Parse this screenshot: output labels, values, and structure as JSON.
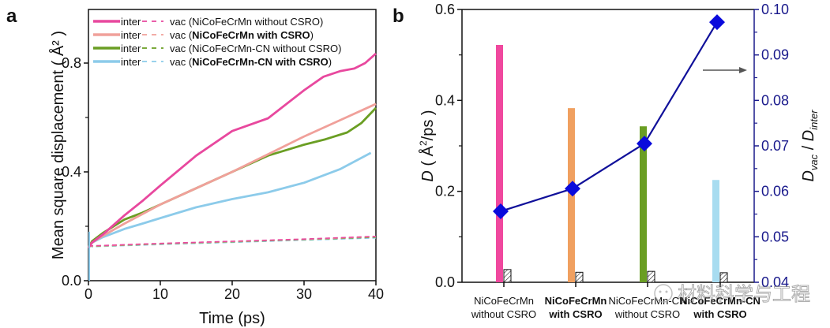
{
  "chart_data": [
    {
      "panel": "a",
      "type": "line",
      "title": "",
      "xlabel": "Time (ps)",
      "ylabel": "Mean square displacement ( Å² )",
      "xlim": [
        0,
        40
      ],
      "ylim": [
        0,
        0.9
      ],
      "xticks": [
        "0",
        "10",
        "20",
        "30",
        "40"
      ],
      "xtick_values": [
        0,
        10,
        20,
        30,
        40
      ],
      "yticks": [
        "0.0",
        "0.4",
        "0.8"
      ],
      "ytick_values": [
        0,
        0.4,
        0.8
      ],
      "yminor_values": [
        0.2,
        0.6
      ],
      "grid": false,
      "legend_position": "top-left",
      "legend": [
        {
          "solid": "inter",
          "dashed": "vac",
          "label_prefix": "(",
          "label_main": "NiCoFeCrMn without CSRO",
          "label_suffix": ")",
          "bold": false,
          "color": "#e8489e"
        },
        {
          "solid": "inter",
          "dashed": "vac",
          "label_prefix": "(",
          "label_main": "NiCoFeCrMn with CSRO",
          "label_suffix": ")",
          "bold": true,
          "color": "#f0a09a"
        },
        {
          "solid": "inter",
          "dashed": "vac",
          "label_prefix": "(",
          "label_main": "NiCoFeCrMn-CN without CSRO",
          "label_suffix": ")",
          "bold": false,
          "color": "#6a9e23"
        },
        {
          "solid": "inter",
          "dashed": "vac",
          "label_prefix": "(",
          "label_main": "NiCoFeCrMn-CN with CSRO",
          "label_suffix": ")",
          "bold": true,
          "color": "#8ccbea"
        }
      ],
      "series": [
        {
          "name": "inter NiCoFeCrMn without CSRO",
          "style": "solid",
          "color": "#e8489e",
          "x": [
            0,
            0.5,
            2,
            5,
            7.5,
            10,
            15,
            20,
            25,
            30,
            32.7,
            35,
            37,
            38.5,
            40
          ],
          "y": [
            0.12,
            0.14,
            0.17,
            0.24,
            0.293,
            0.35,
            0.46,
            0.55,
            0.597,
            0.7,
            0.75,
            0.77,
            0.78,
            0.8,
            0.835
          ]
        },
        {
          "name": "inter NiCoFeCrMn with CSRO",
          "style": "solid",
          "color": "#f0a09a",
          "x": [
            0,
            0.5,
            2,
            5,
            7.5,
            10,
            15,
            20,
            25,
            30,
            35,
            40
          ],
          "y": [
            0.12,
            0.14,
            0.165,
            0.21,
            0.245,
            0.28,
            0.34,
            0.4,
            0.465,
            0.53,
            0.59,
            0.65
          ]
        },
        {
          "name": "inter NiCoFeCrMn-CN without CSRO",
          "style": "solid",
          "color": "#6a9e23",
          "x": [
            0,
            0.5,
            2,
            5,
            7.5,
            10,
            15,
            20,
            25,
            30,
            33,
            36,
            38,
            40
          ],
          "y": [
            0.12,
            0.145,
            0.175,
            0.225,
            0.25,
            0.28,
            0.34,
            0.4,
            0.46,
            0.5,
            0.52,
            0.545,
            0.58,
            0.635
          ]
        },
        {
          "name": "inter NiCoFeCrMn-CN with CSRO",
          "style": "solid",
          "color": "#8ccbea",
          "x": [
            0,
            0.5,
            2,
            5,
            7.5,
            10,
            15,
            20,
            25,
            30,
            35,
            39.3
          ],
          "y": [
            0.12,
            0.14,
            0.16,
            0.19,
            0.21,
            0.23,
            0.27,
            0.3,
            0.325,
            0.36,
            0.41,
            0.47
          ]
        },
        {
          "name": "vac NiCoFeCrMn without CSRO",
          "style": "dashed",
          "color": "#e8489e",
          "x": [
            0,
            0.5,
            10,
            20,
            30,
            40
          ],
          "y": [
            0.13,
            0.128,
            0.137,
            0.145,
            0.153,
            0.163
          ]
        },
        {
          "name": "vac NiCoFeCrMn with CSRO",
          "style": "dashed",
          "color": "#f0a09a",
          "x": [
            0,
            0.5,
            10,
            20,
            30,
            40
          ],
          "y": [
            0.13,
            0.127,
            0.136,
            0.144,
            0.152,
            0.162
          ]
        },
        {
          "name": "vac NiCoFeCrMn-CN without CSRO",
          "style": "dashed",
          "color": "#6a9e23",
          "x": [
            0,
            0.5,
            10,
            20,
            30,
            40
          ],
          "y": [
            0.13,
            0.126,
            0.135,
            0.143,
            0.151,
            0.16
          ]
        },
        {
          "name": "vac NiCoFeCrMn-CN with CSRO",
          "style": "dashed",
          "color": "#8ccbea",
          "x": [
            0,
            0.5,
            10,
            20,
            30,
            40
          ],
          "y": [
            0.13,
            0.125,
            0.133,
            0.141,
            0.149,
            0.157
          ]
        }
      ]
    },
    {
      "panel": "b",
      "type": "bar",
      "title": "",
      "xlabel": "",
      "ylabel": "D ( Å²/ps )",
      "ylabel_right": "Dvac / Dinter",
      "ylim": [
        0,
        0.6
      ],
      "ylim_right": [
        0.04,
        0.1
      ],
      "yticks": [
        "0.0",
        "0.2",
        "0.4",
        "0.6"
      ],
      "ytick_values": [
        0,
        0.2,
        0.4,
        0.6
      ],
      "yminor_values": [
        0.1,
        0.3,
        0.5
      ],
      "yticks_right": [
        "0.04",
        "0.05",
        "0.06",
        "0.07",
        "0.08",
        "0.09",
        "0.10"
      ],
      "ytick_values_right": [
        0.04,
        0.05,
        0.06,
        0.07,
        0.08,
        0.09,
        0.1
      ],
      "categories": [
        {
          "line1": "NiCoFeCrMn",
          "line2": "without CSRO",
          "bold": false
        },
        {
          "line1": "NiCoFeCrMn",
          "line2": "with CSRO",
          "bold": true
        },
        {
          "line1": "NiCoFeCrMn-CN",
          "line2": "without CSRO",
          "bold": false
        },
        {
          "line1": "NiCoFeCrMn-CN",
          "line2": "with CSRO",
          "bold": true
        }
      ],
      "series": [
        {
          "name": "D inter",
          "type": "bar",
          "colors": [
            "#f0489e",
            "#f0a060",
            "#6a9e23",
            "#a8dcf0"
          ],
          "values": [
            0.522,
            0.383,
            0.343,
            0.225
          ]
        },
        {
          "name": "D vac",
          "type": "bar",
          "pattern": "hatched",
          "values": [
            0.028,
            0.022,
            0.024,
            0.021
          ]
        },
        {
          "name": "Dvac / Dinter",
          "type": "line",
          "axis": "right",
          "marker": "diamond",
          "color": "#0a0adc",
          "values": [
            0.0556,
            0.0606,
            0.0705,
            0.0972
          ]
        }
      ],
      "annotation": "arrow pointing to right axis",
      "grid": false
    }
  ],
  "panel_labels": [
    "a",
    "b"
  ],
  "watermark": "材料科学与工程"
}
